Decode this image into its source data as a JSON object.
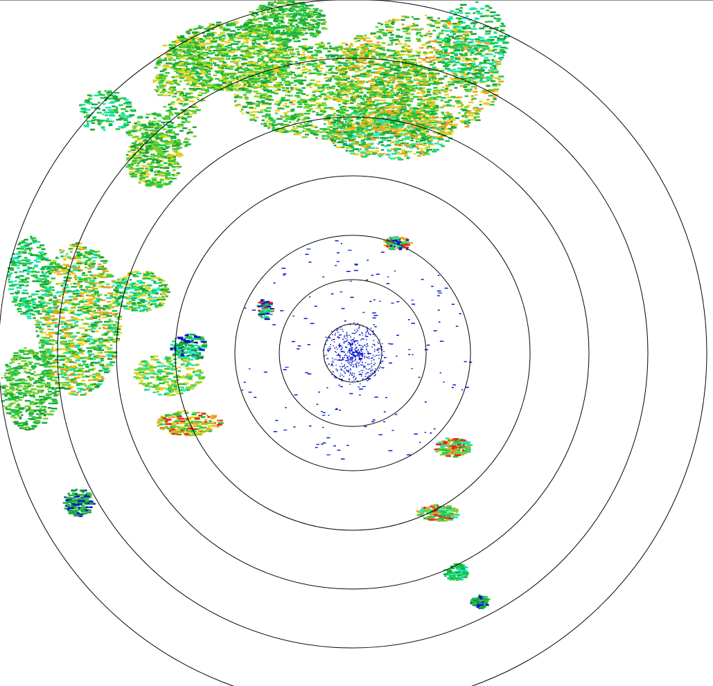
{
  "radar": {
    "range_ring_count": 7,
    "ring_color": "#000000",
    "reflectivity_colors": [
      "#0a14c8",
      "#1e50e6",
      "#18e6b4",
      "#22c83c",
      "#1aa53a",
      "#7ccf2a",
      "#e6d21e",
      "#f0a01e",
      "#f01e1e"
    ]
  }
}
